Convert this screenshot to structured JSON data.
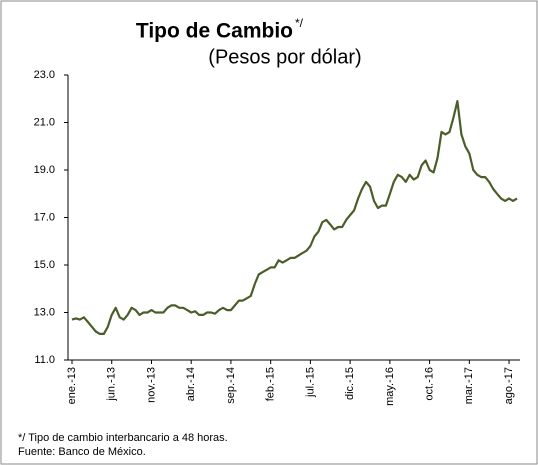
{
  "chart_data": {
    "type": "line",
    "title": "Tipo de Cambio",
    "title_sup": "*/",
    "subtitle": "(Pesos por dólar)",
    "notes": [
      "*/ Tipo de cambio interbancario a 48 horas.",
      "Fuente: Banco de México."
    ],
    "color": "#4b5e2a",
    "categories": [
      "ene.-13",
      null,
      null,
      null,
      null,
      null,
      null,
      null,
      null,
      null,
      "jun.-13",
      null,
      null,
      null,
      null,
      null,
      null,
      null,
      null,
      null,
      "nov.-13",
      null,
      null,
      null,
      null,
      null,
      null,
      null,
      null,
      null,
      "abr.-14",
      null,
      null,
      null,
      null,
      null,
      null,
      null,
      null,
      null,
      "sep.-14",
      null,
      null,
      null,
      null,
      null,
      null,
      null,
      null,
      null,
      "feb.-15",
      null,
      null,
      null,
      null,
      null,
      null,
      null,
      null,
      null,
      "jul.-15",
      null,
      null,
      null,
      null,
      null,
      null,
      null,
      null,
      null,
      "dic.-15",
      null,
      null,
      null,
      null,
      null,
      null,
      null,
      null,
      null,
      "may.-16",
      null,
      null,
      null,
      null,
      null,
      null,
      null,
      null,
      null,
      "oct.-16",
      null,
      null,
      null,
      null,
      null,
      null,
      null,
      null,
      null,
      "mar.-17",
      null,
      null,
      null,
      null,
      null,
      null,
      null,
      null,
      null,
      "ago.-17",
      null,
      null
    ],
    "values": [
      12.7,
      12.75,
      12.7,
      12.8,
      12.6,
      12.4,
      12.2,
      12.1,
      12.1,
      12.4,
      12.9,
      13.2,
      12.8,
      12.7,
      12.9,
      13.2,
      13.1,
      12.9,
      13.0,
      13.0,
      13.1,
      13.0,
      13.0,
      13.0,
      13.2,
      13.3,
      13.3,
      13.2,
      13.2,
      13.1,
      13.0,
      13.05,
      12.9,
      12.9,
      13.0,
      13.0,
      12.95,
      13.1,
      13.2,
      13.1,
      13.1,
      13.3,
      13.5,
      13.5,
      13.6,
      13.7,
      14.2,
      14.6,
      14.7,
      14.8,
      14.9,
      14.9,
      15.2,
      15.1,
      15.2,
      15.3,
      15.3,
      15.4,
      15.5,
      15.6,
      15.8,
      16.2,
      16.4,
      16.8,
      16.9,
      16.7,
      16.5,
      16.6,
      16.6,
      16.9,
      17.1,
      17.3,
      17.8,
      18.2,
      18.5,
      18.3,
      17.7,
      17.4,
      17.5,
      17.5,
      18.0,
      18.5,
      18.8,
      18.7,
      18.5,
      18.8,
      18.6,
      18.7,
      19.2,
      19.4,
      19.0,
      18.9,
      19.5,
      20.6,
      20.5,
      20.6,
      21.2,
      21.9,
      20.5,
      20.0,
      19.7,
      19.0,
      18.8,
      18.7,
      18.7,
      18.5,
      18.2,
      18.0,
      17.8,
      17.7,
      17.8,
      17.7,
      17.8
    ],
    "ylim": [
      11,
      23
    ],
    "yticks": [
      {
        "value": 11,
        "label": "11.0"
      },
      {
        "value": 13,
        "label": "13.0"
      },
      {
        "value": 15,
        "label": "15.0"
      },
      {
        "value": 17,
        "label": "17.0"
      },
      {
        "value": 19,
        "label": "19.0"
      },
      {
        "value": 21,
        "label": "21.0"
      },
      {
        "value": 23,
        "label": "23.0"
      }
    ]
  }
}
